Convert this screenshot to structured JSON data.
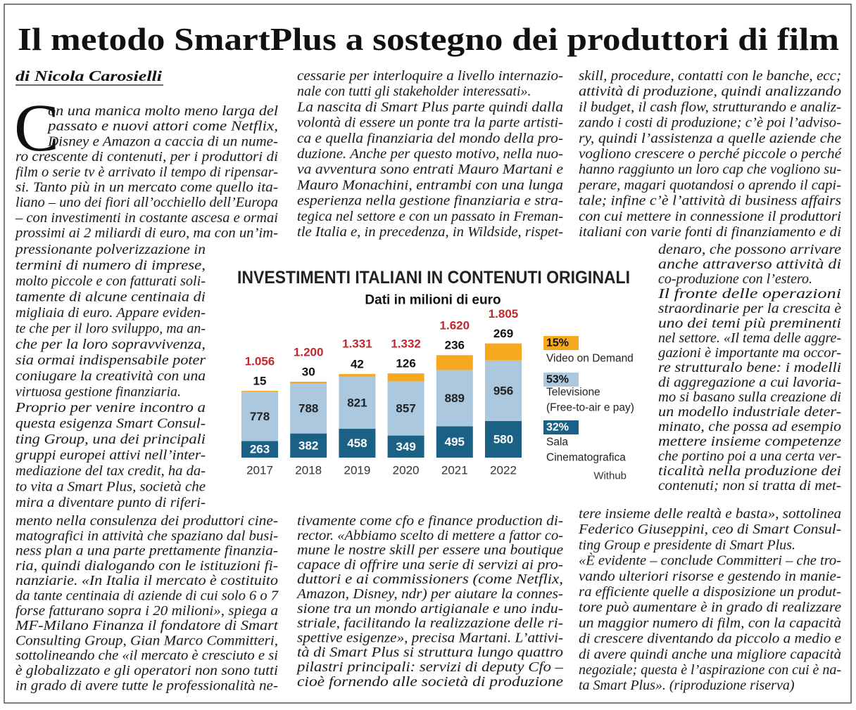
{
  "title": "Il metodo SmartPlus a sostegno dei produttori di film",
  "byline": "di Nicola Carosielli",
  "drop_cap": "C",
  "columns": [
    {
      "blocks": [
        [
          "on una manica molto meno larga del",
          "passato e nuovi attori come Netflix,",
          "Disney e Amazon a caccia di un nume-",
          "ro crescente di contenuti, per i produttori di",
          "film o serie tv è arrivato il tempo di ripensar-",
          "si. Tanto più in un mercato come quello ita-",
          "liano – uno dei fiori all’occhiello dell’Europa",
          "– con investimenti in costante ascesa e ormai",
          "prossimi ai 2 miliardi di euro, ma con un’im-"
        ],
        [
          "pressionante polverizzazione in",
          "termini di numero di imprese,",
          "molto piccole e con fatturati soli-",
          "tamente di alcune centinaia di",
          "migliaia di euro. Appare eviden-",
          "te che per il loro sviluppo, ma an-",
          "che per la loro sopravvivenza,",
          "sia ormai indispensabile poter",
          "coniugare la creatività con una",
          "virtuosa gestione finanziaria.",
          "Proprio per venire incontro a",
          "questa esigenza Smart Consul-",
          "ting Group, una dei principali",
          "gruppi europei attivi nell’inter-",
          "mediazione del tax credit, ha da-",
          "to vita a Smart Plus, società che",
          "mira a diventare punto di riferi-"
        ],
        [
          "mento nella consulenza dei produttori cine-",
          "matografici in attività che spaziano dal busi-",
          "ness plan a una parte prettamente finanzia-",
          "ria, quindi dialogando con le istituzioni fi-",
          "nanziarie. «In Italia il mercato è costituito",
          "da tante centinaia di aziende di cui solo 6 o 7",
          "forse fatturano sopra i 20 milioni», spiega a",
          "MF-Milano Finanza il fondatore di Smart",
          "Consulting Group, Gian Marco Committeri,",
          "sottolineando che «il mercato è cresciuto e si",
          "è globalizzato e gli operatori non sono tutti",
          "in grado di avere tutte le professionalità ne-"
        ]
      ]
    },
    {
      "blocks": [
        [
          "cessarie per interloquire a livello internazio-",
          "nale con tutti gli stakeholder interessati».",
          "La nascita di Smart Plus parte quindi dalla",
          "volontà di essere un ponte tra la parte artisti-",
          "ca e quella finanziaria del mondo della pro-",
          "duzione. Anche per questo motivo, nella nuo-",
          "va avventura sono entrati Mauro Martani e",
          "Mauro Monachini, entrambi con una lunga",
          "esperienza nella gestione finanziaria e stra-",
          "tegica nel settore e con un passato in Freman-",
          "tle Italia e, in precedenza, in Wildside, rispet-"
        ],
        [
          "tivamente come cfo e finance production di-",
          "rector. «Abbiamo scelto di mettere a fattor co-",
          "mune le nostre skill per essere una boutique",
          "capace di offrire una serie di servizi ai pro-",
          "duttori e ai commissioners (come Netflix,",
          "Amazon, Disney, ndr) per aiutare la connes-",
          "sione tra un mondo artigianale e uno indu-",
          "striale, facilitando la realizzazione delle ri-",
          "spettive esigenze», precisa Martani. L’attivi-",
          "tà di Smart Plus si struttura lungo quattro",
          "pilastri principali: servizi di deputy Cfo –",
          "cioè fornendo alle società di produzione"
        ]
      ]
    },
    {
      "blocks": [
        [
          "skill, procedure, contatti con le banche, ecc;",
          "attività di produzione, quindi analizzando",
          "il budget, il cash flow, strutturando e analiz-",
          "zando i costi di produzione; c’è poi l’adviso-",
          "ry, quindi l’assistenza a quelle aziende che",
          "vogliono crescere o perché piccole o perché",
          "hanno raggiunto un loro cap che vogliono su-",
          "perare, magari quotandosi o aprendo il capi-",
          "tale; infine c’è l’attività di business affairs",
          "con cui mettere in connessione il produttori",
          "italiani con varie fonti di finanziamento e di"
        ],
        [
          "denaro, che possono arrivare",
          "anche attraverso attività di",
          "co-produzione con l’estero.",
          "Il fronte delle operazioni",
          "straordinarie per la crescita è",
          "uno dei temi più preminenti",
          "nel settore. «Il tema delle aggre-",
          "gazioni è importante ma occor-",
          "re strutturalo bene: i modelli",
          "di aggregazione a cui lavoria-",
          "mo si basano sulla creazione di",
          "un modello industriale deter-",
          "minato, che possa ad esempio",
          "mettere insieme competenze",
          "che portino poi a una certa ver-",
          "ticalità nella produzione dei",
          "contenuti; non si tratta di met-"
        ],
        [
          "tere insieme delle realtà e basta», sottolinea",
          "Federico Giuseppini, ceo di Smart Consul-",
          "ting Group e presidente di Smart Plus.",
          "«È evidente – conclude Committeri – che tro-",
          "vando ulteriori risorse e gestendo in manie-",
          "ra efficiente quelle a disposizione un produt-",
          "tore può aumentare è in grado di realizzare",
          "un maggior numero di film, con la capacità",
          "di crescere diventando da piccolo a medio e",
          "di avere quindi anche una migliore capacità",
          "negoziale; questa è l’aspirazione con cui è na-",
          "ta Smart Plus». (riproduzione riserva)"
        ]
      ]
    }
  ],
  "chart_data": {
    "type": "stacked_bar",
    "title": "INVESTIMENTI ITALIANI IN CONTENUTI ORIGINALI",
    "subtitle": "Dati in milioni di euro",
    "categories": [
      "2017",
      "2018",
      "2019",
      "2020",
      "2021",
      "2022"
    ],
    "series": [
      {
        "name": [
          "Sala",
          "Cinematografica"
        ],
        "share": "32%",
        "color": "#1b6186",
        "values": [
          263,
          382,
          458,
          349,
          495,
          580
        ]
      },
      {
        "name": [
          "Televisione",
          "(Free-to-air e pay)"
        ],
        "share": "53%",
        "color": "#abc8de",
        "values": [
          778,
          788,
          821,
          857,
          889,
          956
        ]
      },
      {
        "name": [
          "Video on Demand"
        ],
        "share": "15%",
        "color": "#f6a91e",
        "values": [
          15,
          30,
          42,
          126,
          236,
          269
        ]
      }
    ],
    "totals": [
      {
        "value": 1056,
        "label": "1.056"
      },
      {
        "value": 1200,
        "label": "1.200"
      },
      {
        "value": 1331,
        "label": "1.331"
      },
      {
        "value": 1332,
        "label": "1.332"
      },
      {
        "value": 1620,
        "label": "1.620"
      },
      {
        "value": 1805,
        "label": "1.805"
      }
    ],
    "total_color": "#c3272d",
    "source": "Withub"
  }
}
